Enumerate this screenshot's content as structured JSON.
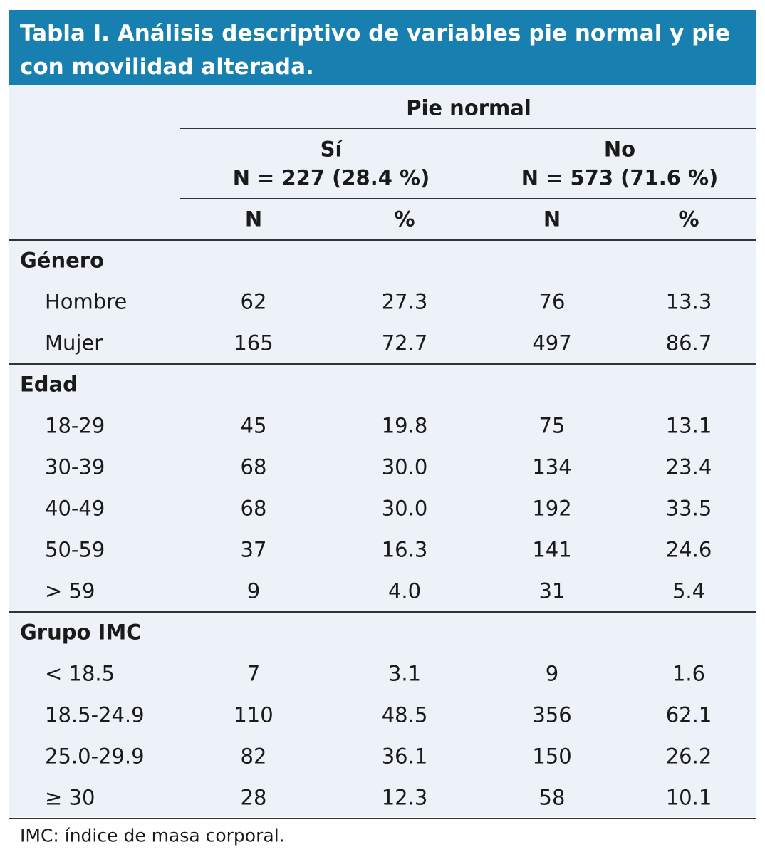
{
  "title": "Tabla I. Análisis descriptivo de variables pie normal y pie con movilidad alterada.",
  "header": {
    "group": "Pie normal",
    "columns": [
      {
        "label": "Sí",
        "n": "N = 227 (28.4 %)"
      },
      {
        "label": "No",
        "n": "N = 573 (71.6 %)"
      }
    ],
    "subcolumns": [
      "N",
      "%",
      "N",
      "%"
    ]
  },
  "sections": [
    {
      "label": "Género",
      "rows": [
        [
          "Hombre",
          "62",
          "27.3",
          "76",
          "13.3"
        ],
        [
          "Mujer",
          "165",
          "72.7",
          "497",
          "86.7"
        ]
      ]
    },
    {
      "label": "Edad",
      "rows": [
        [
          "18-29",
          "45",
          "19.8",
          "75",
          "13.1"
        ],
        [
          "30-39",
          "68",
          "30.0",
          "134",
          "23.4"
        ],
        [
          "40-49",
          "68",
          "30.0",
          "192",
          "33.5"
        ],
        [
          "50-59",
          "37",
          "16.3",
          "141",
          "24.6"
        ],
        [
          "> 59",
          "9",
          "4.0",
          "31",
          "5.4"
        ]
      ]
    },
    {
      "label": "Grupo IMC",
      "rows": [
        [
          "< 18.5",
          "7",
          "3.1",
          "9",
          "1.6"
        ],
        [
          "18.5-24.9",
          "110",
          "48.5",
          "356",
          "62.1"
        ],
        [
          "25.0-29.9",
          "82",
          "36.1",
          "150",
          "26.2"
        ],
        [
          "≥ 30",
          "28",
          "12.3",
          "58",
          "10.1"
        ]
      ]
    }
  ],
  "footnote": "IMC: índice de masa corporal."
}
